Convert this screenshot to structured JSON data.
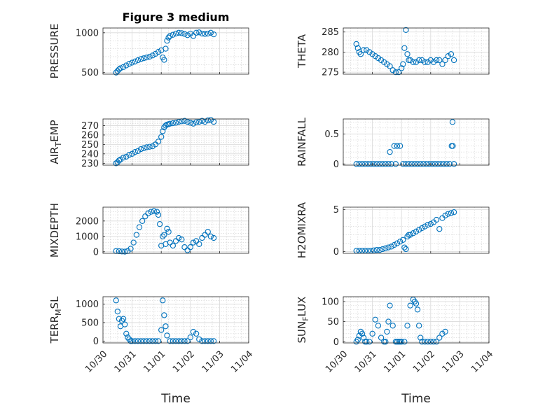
{
  "figure": {
    "title": "Figure 3 medium",
    "xlabel_left": "Time",
    "xlabel_right": "Time",
    "marker_color": "#0072BD"
  },
  "chart_data": [
    {
      "type": "scatter",
      "ylabel": "PRESSURE",
      "xlim": [
        "10/30",
        "11/04"
      ],
      "ylim": [
        480,
        1060
      ],
      "yticks": [
        500,
        1000
      ],
      "grid": "on",
      "points_x_days": [
        0.45,
        0.5,
        0.55,
        0.6,
        0.7,
        0.8,
        0.9,
        1.0,
        1.1,
        1.2,
        1.3,
        1.4,
        1.5,
        1.6,
        1.7,
        1.8,
        1.9,
        2.0,
        2.05,
        2.1,
        2.15,
        2.2,
        2.25,
        2.3,
        2.4,
        2.5,
        2.6,
        2.7,
        2.8,
        2.9,
        3.0,
        3.1,
        3.2,
        3.3,
        3.4,
        3.5,
        3.6,
        3.7,
        3.8
      ],
      "points_y": [
        500,
        520,
        540,
        555,
        570,
        590,
        610,
        625,
        640,
        655,
        670,
        680,
        690,
        700,
        715,
        735,
        760,
        780,
        690,
        660,
        800,
        900,
        940,
        960,
        975,
        990,
        1000,
        995,
        985,
        970,
        990,
        960,
        1000,
        1005,
        990,
        985,
        990,
        1000,
        980
      ]
    },
    {
      "type": "scatter",
      "ylabel": "THETA",
      "xlim": [
        "10/30",
        "11/04"
      ],
      "ylim": [
        274.5,
        286
      ],
      "yticks": [
        275,
        280,
        285
      ],
      "grid": "on",
      "points_x_days": [
        0.45,
        0.5,
        0.55,
        0.6,
        0.7,
        0.8,
        0.9,
        1.0,
        1.1,
        1.2,
        1.3,
        1.4,
        1.5,
        1.6,
        1.7,
        1.8,
        1.9,
        2.0,
        2.05,
        2.1,
        2.15,
        2.2,
        2.25,
        2.3,
        2.4,
        2.5,
        2.6,
        2.7,
        2.8,
        2.9,
        3.0,
        3.1,
        3.2,
        3.3,
        3.4,
        3.5,
        3.6,
        3.7,
        3.8
      ],
      "points_y": [
        282,
        281,
        280,
        279.5,
        280.5,
        280.5,
        280,
        279.5,
        279,
        278.5,
        278,
        277.5,
        277,
        276.5,
        275.5,
        275,
        275,
        276,
        277,
        281,
        285.5,
        279.5,
        278,
        278,
        277.5,
        277.5,
        278,
        278,
        277.5,
        277.5,
        278,
        277.5,
        278,
        278,
        277,
        278,
        279,
        279.5,
        278
      ]
    },
    {
      "type": "scatter",
      "ylabel": "AIR_TEMP",
      "xlim": [
        "10/30",
        "11/04"
      ],
      "ylim": [
        228,
        277
      ],
      "yticks": [
        230,
        240,
        250,
        260,
        270
      ],
      "grid": "on",
      "points_x_days": [
        0.45,
        0.5,
        0.55,
        0.6,
        0.7,
        0.8,
        0.9,
        1.0,
        1.1,
        1.2,
        1.3,
        1.4,
        1.5,
        1.6,
        1.7,
        1.8,
        1.9,
        2.0,
        2.05,
        2.1,
        2.15,
        2.2,
        2.25,
        2.3,
        2.4,
        2.5,
        2.6,
        2.7,
        2.8,
        2.9,
        3.0,
        3.1,
        3.2,
        3.3,
        3.4,
        3.5,
        3.6,
        3.7,
        3.8
      ],
      "points_y": [
        230,
        231,
        233,
        234,
        236,
        237,
        239,
        240,
        242,
        243,
        245,
        246,
        247,
        247.5,
        248,
        250,
        253,
        258,
        264,
        268,
        270,
        271,
        271.5,
        272,
        272.5,
        273,
        274,
        274.5,
        275,
        274,
        273,
        272,
        273.5,
        274,
        275,
        274,
        275.5,
        276,
        274
      ]
    },
    {
      "type": "scatter",
      "ylabel": "RAINFALL",
      "xlim": [
        "10/30",
        "11/04"
      ],
      "ylim": [
        -0.02,
        0.75
      ],
      "yticks": [
        0,
        0.5
      ],
      "grid": "on",
      "points_x_days": [
        0.45,
        0.55,
        0.65,
        0.75,
        0.85,
        0.95,
        1.05,
        1.15,
        1.25,
        1.35,
        1.45,
        1.55,
        1.6,
        1.65,
        1.75,
        1.8,
        1.85,
        1.95,
        2.05,
        2.15,
        2.25,
        2.35,
        2.45,
        2.55,
        2.65,
        2.75,
        2.85,
        2.95,
        3.05,
        3.15,
        3.25,
        3.35,
        3.45,
        3.55,
        3.65,
        3.75,
        3.72,
        3.76,
        3.8
      ],
      "points_y": [
        0,
        0,
        0,
        0,
        0,
        0,
        0,
        0,
        0,
        0,
        0,
        0,
        0.2,
        0,
        0.3,
        0,
        0.3,
        0.3,
        0,
        0,
        0,
        0,
        0,
        0,
        0,
        0,
        0,
        0,
        0,
        0,
        0,
        0,
        0,
        0,
        0,
        0.7,
        0.3,
        0.3,
        0
      ]
    },
    {
      "type": "scatter",
      "ylabel": "MIXDEPTH",
      "xlim": [
        "10/30",
        "11/04"
      ],
      "ylim": [
        -100,
        2900
      ],
      "yticks": [
        0,
        1000,
        2000
      ],
      "grid": "on",
      "points_x_days": [
        0.45,
        0.55,
        0.65,
        0.75,
        0.85,
        0.95,
        1.05,
        1.15,
        1.25,
        1.35,
        1.45,
        1.55,
        1.65,
        1.75,
        1.85,
        1.9,
        1.95,
        2.0,
        2.05,
        2.1,
        2.15,
        2.2,
        2.25,
        2.3,
        2.4,
        2.5,
        2.6,
        2.7,
        2.8,
        2.9,
        3.0,
        3.1,
        3.2,
        3.3,
        3.4,
        3.5,
        3.6,
        3.7,
        3.8
      ],
      "points_y": [
        50,
        40,
        20,
        10,
        50,
        200,
        600,
        1100,
        1600,
        2000,
        2300,
        2500,
        2600,
        2650,
        2600,
        2400,
        1800,
        400,
        1000,
        1100,
        500,
        1500,
        1300,
        600,
        400,
        700,
        900,
        800,
        300,
        100,
        300,
        600,
        700,
        500,
        900,
        1100,
        1300,
        1000,
        900
      ]
    },
    {
      "type": "scatter",
      "ylabel": "H2OMIXRA",
      "xlim": [
        "10/30",
        "11/04"
      ],
      "ylim": [
        -0.2,
        5.3
      ],
      "yticks": [
        0,
        5
      ],
      "grid": "on",
      "points_x_days": [
        0.45,
        0.55,
        0.65,
        0.75,
        0.85,
        0.95,
        1.05,
        1.15,
        1.25,
        1.35,
        1.45,
        1.55,
        1.65,
        1.75,
        1.85,
        1.95,
        2.05,
        2.1,
        2.15,
        2.2,
        2.25,
        2.3,
        2.4,
        2.5,
        2.6,
        2.7,
        2.8,
        2.9,
        3.0,
        3.1,
        3.2,
        3.3,
        3.4,
        3.5,
        3.6,
        3.7,
        3.8
      ],
      "points_y": [
        0.1,
        0.1,
        0.1,
        0.1,
        0.1,
        0.1,
        0.15,
        0.2,
        0.2,
        0.3,
        0.4,
        0.5,
        0.6,
        0.8,
        1.0,
        1.2,
        1.4,
        0.5,
        0.3,
        1.8,
        2.0,
        2.0,
        2.2,
        2.4,
        2.6,
        2.8,
        3.0,
        3.2,
        3.3,
        3.5,
        3.8,
        2.7,
        4.0,
        4.3,
        4.5,
        4.6,
        4.7
      ]
    },
    {
      "type": "scatter",
      "ylabel": "TERR_MSL",
      "xlim": [
        "10/30",
        "11/04"
      ],
      "ylim": [
        -50,
        1200
      ],
      "yticks": [
        0,
        500,
        1000
      ],
      "grid": "on",
      "xticklabels": [
        "10/30",
        "10/31",
        "11/01",
        "11/02",
        "11/03",
        "11/04"
      ],
      "points_x_days": [
        0.45,
        0.5,
        0.55,
        0.6,
        0.65,
        0.7,
        0.75,
        0.8,
        0.85,
        0.9,
        0.95,
        1.0,
        1.1,
        1.2,
        1.3,
        1.4,
        1.5,
        1.6,
        1.7,
        1.8,
        1.9,
        2.0,
        2.05,
        2.1,
        2.15,
        2.2,
        2.3,
        2.4,
        2.5,
        2.6,
        2.7,
        2.8,
        2.9,
        3.0,
        3.1,
        3.2,
        3.3,
        3.4,
        3.5,
        3.6,
        3.7,
        3.8
      ],
      "points_y": [
        1100,
        800,
        600,
        400,
        550,
        600,
        450,
        200,
        100,
        50,
        0,
        0,
        0,
        0,
        0,
        0,
        0,
        0,
        0,
        0,
        0,
        300,
        1100,
        700,
        400,
        150,
        0,
        0,
        0,
        0,
        0,
        0,
        0,
        100,
        250,
        200,
        50,
        0,
        0,
        0,
        0,
        0
      ]
    },
    {
      "type": "scatter",
      "ylabel": "SUN_FLUX",
      "xlim": [
        "10/30",
        "11/04"
      ],
      "ylim": [
        -3,
        112
      ],
      "yticks": [
        0,
        50,
        100
      ],
      "grid": "on",
      "xticklabels": [
        "10/30",
        "10/31",
        "11/01",
        "11/02",
        "11/03",
        "11/04"
      ],
      "points_x_days": [
        0.45,
        0.5,
        0.55,
        0.6,
        0.65,
        0.7,
        0.75,
        0.8,
        0.9,
        1.0,
        1.1,
        1.2,
        1.3,
        1.4,
        1.45,
        1.5,
        1.55,
        1.6,
        1.7,
        1.8,
        1.85,
        1.9,
        1.95,
        2.0,
        2.1,
        2.2,
        2.3,
        2.4,
        2.45,
        2.5,
        2.55,
        2.6,
        2.65,
        2.7,
        2.8,
        2.9,
        3.0,
        3.1,
        3.2,
        3.3,
        3.4,
        3.5
      ],
      "points_y": [
        0,
        5,
        15,
        25,
        20,
        10,
        0,
        0,
        0,
        20,
        55,
        40,
        10,
        0,
        0,
        25,
        50,
        90,
        40,
        0,
        0,
        0,
        0,
        0,
        0,
        40,
        90,
        105,
        100,
        95,
        80,
        40,
        10,
        0,
        0,
        0,
        0,
        0,
        0,
        10,
        20,
        25
      ]
    }
  ]
}
